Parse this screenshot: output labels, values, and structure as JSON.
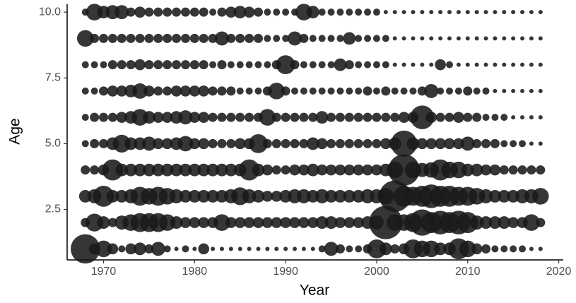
{
  "chart_data": {
    "type": "bubble",
    "xlabel": "Year",
    "ylabel": "Age",
    "xlim": [
      1966,
      2020.5
    ],
    "ylim": [
      0.58,
      10.3
    ],
    "xticks": [
      1970,
      1980,
      1990,
      2000,
      2010,
      2020
    ],
    "yticks": [
      2.5,
      {
        "value": 5,
        "label": "5.0"
      },
      7.5,
      {
        "value": 10,
        "label": "10.0"
      }
    ],
    "color": "#1a1a1a",
    "x": [
      1968,
      1969,
      1970,
      1971,
      1972,
      1973,
      1974,
      1975,
      1976,
      1977,
      1978,
      1979,
      1980,
      1981,
      1982,
      1983,
      1984,
      1985,
      1986,
      1987,
      1988,
      1989,
      1990,
      1991,
      1992,
      1993,
      1994,
      1995,
      1996,
      1997,
      1998,
      1999,
      2000,
      2001,
      2002,
      2003,
      2004,
      2005,
      2006,
      2007,
      2008,
      2009,
      2010,
      2011,
      2012,
      2013,
      2014,
      2015,
      2016,
      2017,
      2018
    ],
    "series": [
      {
        "y": 10,
        "sizes": [
          2,
          8,
          5,
          6,
          6,
          3,
          4,
          3,
          3,
          3,
          3,
          3,
          3,
          3,
          2,
          3,
          4,
          5,
          4,
          3,
          2,
          2,
          2,
          2,
          8,
          5,
          2,
          2,
          2,
          2,
          2,
          2,
          2,
          1,
          1,
          1,
          1,
          1,
          1,
          1,
          1,
          1,
          1,
          1,
          1,
          1,
          1,
          1,
          1,
          1,
          1
        ]
      },
      {
        "y": 9,
        "sizes": [
          8,
          3,
          3,
          3,
          3,
          3,
          3,
          3,
          3,
          3,
          3,
          3,
          3,
          3,
          3,
          6,
          3,
          3,
          3,
          3,
          2,
          2,
          2,
          6,
          3,
          2,
          2,
          2,
          2,
          5,
          2,
          2,
          2,
          2,
          1,
          1,
          1,
          1,
          1,
          1,
          1,
          1,
          1,
          1,
          1,
          1,
          1,
          1,
          1,
          1,
          1
        ]
      },
      {
        "y": 8,
        "sizes": [
          2,
          2,
          2,
          3,
          3,
          3,
          4,
          3,
          3,
          3,
          3,
          3,
          3,
          3,
          2,
          3,
          2,
          2,
          2,
          2,
          2,
          3,
          10,
          3,
          2,
          2,
          2,
          2,
          5,
          3,
          2,
          2,
          2,
          2,
          1,
          1,
          1,
          1,
          1,
          4,
          2,
          1,
          1,
          1,
          1,
          1,
          1,
          1,
          1,
          1,
          1
        ]
      },
      {
        "y": 7,
        "sizes": [
          2,
          2,
          3,
          4,
          4,
          5,
          7,
          4,
          3,
          3,
          4,
          4,
          4,
          4,
          3,
          3,
          3,
          2,
          2,
          2,
          3,
          8,
          3,
          2,
          2,
          2,
          2,
          2,
          2,
          2,
          2,
          3,
          2,
          3,
          2,
          2,
          2,
          3,
          6,
          2,
          2,
          2,
          3,
          2,
          2,
          1,
          1,
          1,
          1,
          1,
          1
        ]
      },
      {
        "y": 6,
        "sizes": [
          2,
          3,
          3,
          3,
          4,
          5,
          8,
          5,
          4,
          4,
          5,
          6,
          4,
          4,
          3,
          3,
          3,
          3,
          3,
          3,
          8,
          3,
          3,
          3,
          3,
          3,
          5,
          3,
          3,
          3,
          3,
          3,
          3,
          3,
          3,
          4,
          4,
          15,
          4,
          3,
          3,
          4,
          3,
          3,
          2,
          2,
          2,
          1,
          1,
          1,
          1
        ]
      },
      {
        "y": 5,
        "sizes": [
          2,
          3,
          3,
          5,
          9,
          5,
          5,
          6,
          4,
          4,
          5,
          7,
          4,
          4,
          3,
          3,
          3,
          4,
          4,
          10,
          3,
          3,
          3,
          3,
          3,
          5,
          4,
          3,
          3,
          3,
          3,
          3,
          3,
          4,
          5,
          18,
          5,
          4,
          4,
          4,
          4,
          4,
          6,
          3,
          3,
          3,
          2,
          2,
          2,
          1,
          1
        ]
      },
      {
        "y": 4,
        "sizes": [
          3,
          3,
          4,
          12,
          5,
          5,
          5,
          5,
          5,
          5,
          5,
          5,
          5,
          5,
          5,
          5,
          5,
          5,
          12,
          5,
          4,
          3,
          3,
          4,
          4,
          5,
          4,
          4,
          4,
          4,
          4,
          4,
          4,
          5,
          8,
          25,
          8,
          6,
          7,
          12,
          8,
          8,
          5,
          5,
          4,
          4,
          3,
          3,
          3,
          3,
          3
        ]
      },
      {
        "y": 3,
        "sizes": [
          5,
          6,
          12,
          5,
          5,
          6,
          10,
          8,
          10,
          8,
          6,
          5,
          5,
          5,
          5,
          5,
          6,
          9,
          6,
          5,
          4,
          4,
          5,
          6,
          6,
          5,
          6,
          5,
          5,
          5,
          5,
          6,
          6,
          8,
          25,
          12,
          10,
          12,
          15,
          12,
          12,
          10,
          10,
          8,
          6,
          5,
          5,
          5,
          6,
          6,
          8
        ]
      },
      {
        "y": 2,
        "sizes": [
          3,
          9,
          5,
          3,
          6,
          8,
          10,
          10,
          10,
          8,
          5,
          4,
          4,
          4,
          4,
          8,
          4,
          4,
          4,
          4,
          4,
          4,
          4,
          4,
          4,
          4,
          5,
          5,
          4,
          4,
          4,
          5,
          6,
          28,
          8,
          8,
          10,
          18,
          12,
          15,
          12,
          15,
          12,
          6,
          5,
          5,
          5,
          4,
          4,
          8,
          3
        ]
      },
      {
        "y": 1,
        "sizes": [
          22,
          4,
          8,
          4,
          2,
          4,
          5,
          3,
          6,
          2,
          1,
          2,
          1,
          4,
          1,
          1,
          1,
          1,
          1,
          1,
          1,
          1,
          1,
          1,
          1,
          1,
          2,
          6,
          3,
          2,
          2,
          3,
          10,
          5,
          3,
          4,
          10,
          8,
          8,
          5,
          5,
          12,
          8,
          4,
          3,
          2,
          2,
          2,
          2,
          1,
          1
        ]
      }
    ]
  }
}
